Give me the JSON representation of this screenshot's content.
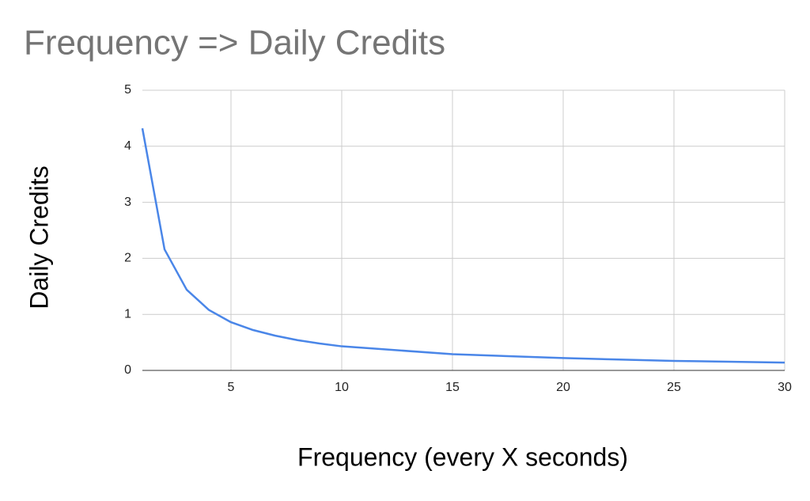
{
  "chart_data": {
    "type": "line",
    "title": "Frequency => Daily Credits",
    "x_label": "Frequency (every X seconds)",
    "y_label": "Daily Credits",
    "x": [
      1,
      2,
      3,
      4,
      5,
      6,
      7,
      8,
      9,
      10,
      15,
      20,
      25,
      30
    ],
    "series": [
      {
        "name": "Daily Credits",
        "color": "#4a86e8",
        "values": [
          4.32,
          2.16,
          1.44,
          1.08,
          0.86,
          0.72,
          0.62,
          0.54,
          0.48,
          0.43,
          0.29,
          0.22,
          0.17,
          0.14
        ]
      }
    ],
    "xlim": [
      1,
      30
    ],
    "xticks": [
      5,
      10,
      15,
      20,
      25,
      30
    ],
    "ylim": [
      0,
      5
    ],
    "yticks": [
      0,
      1,
      2,
      3,
      4,
      5
    ],
    "grid": true
  }
}
